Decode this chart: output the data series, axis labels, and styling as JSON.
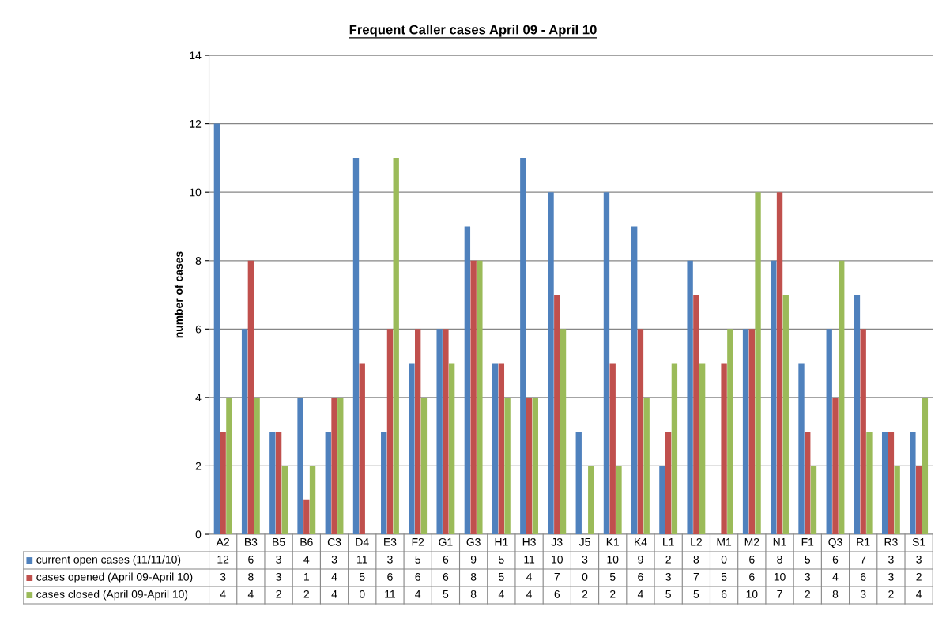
{
  "chart_data": {
    "type": "bar",
    "title": "Frequent Caller cases April 09 - April 10",
    "ylabel": "number of cases",
    "categories": [
      "A2",
      "B3",
      "B5",
      "B6",
      "C3",
      "D4",
      "E3",
      "F2",
      "G1",
      "G3",
      "H1",
      "H3",
      "J3",
      "J5",
      "K1",
      "K4",
      "L1",
      "L2",
      "M1",
      "M2",
      "N1",
      "F1",
      "Q3",
      "R1",
      "R3",
      "S1"
    ],
    "series": [
      {
        "name": "current open cases (11/11/10)",
        "color": "#4f81bd",
        "values": [
          12,
          6,
          3,
          4,
          3,
          11,
          3,
          5,
          6,
          9,
          5,
          11,
          10,
          3,
          10,
          9,
          2,
          8,
          0,
          6,
          8,
          5,
          6,
          7,
          3,
          3
        ]
      },
      {
        "name": "cases opened (April 09-April 10)",
        "color": "#c0504d",
        "values": [
          3,
          8,
          3,
          1,
          4,
          5,
          6,
          6,
          6,
          8,
          5,
          4,
          7,
          0,
          5,
          6,
          3,
          7,
          5,
          6,
          10,
          3,
          4,
          6,
          3,
          2
        ]
      },
      {
        "name": "cases closed (April 09-April 10)",
        "color": "#9bbb59",
        "values": [
          4,
          4,
          2,
          2,
          4,
          0,
          11,
          4,
          5,
          8,
          4,
          4,
          6,
          2,
          2,
          4,
          5,
          5,
          6,
          10,
          7,
          2,
          8,
          3,
          2,
          4
        ]
      }
    ],
    "ylim": [
      0,
      14
    ],
    "yticks": [
      0,
      2,
      4,
      6,
      8,
      10,
      12,
      14
    ],
    "grid": "y",
    "legend": "bottom",
    "data_labels": true
  }
}
